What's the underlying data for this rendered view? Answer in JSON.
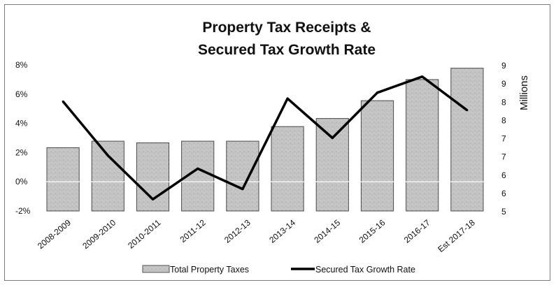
{
  "chart_data": {
    "type": "bar",
    "title_line1": "Property Tax Receipts &",
    "title_line2": "Secured Tax Growth Rate",
    "categories": [
      "2008-2009",
      "2009-2010",
      "2010-2011",
      "2011-12",
      "2012-13",
      "2013-14",
      "2014-15",
      "2015-16",
      "2016-17",
      "Est 2017-18"
    ],
    "series": [
      {
        "name": "Total Property Taxes",
        "kind": "bar",
        "axis": "right",
        "color": "#bdbdbd",
        "values": [
          6.95,
          7.15,
          7.1,
          7.15,
          7.15,
          7.6,
          7.85,
          8.4,
          9.05,
          9.4
        ]
      },
      {
        "name": "Secured Tax Growth Rate",
        "kind": "line",
        "axis": "left",
        "color": "#000000",
        "values": [
          5.5,
          1.8,
          -1.2,
          0.9,
          -0.5,
          5.7,
          3.0,
          6.1,
          7.2,
          4.9
        ]
      }
    ],
    "left_axis": {
      "ticks": [
        "-2%",
        "0%",
        "2%",
        "4%",
        "6%",
        "8%"
      ],
      "ylim": [
        -2,
        8
      ]
    },
    "right_axis": {
      "label": "Millions",
      "ticks": [
        "5",
        "6",
        "6",
        "7",
        "7",
        "8",
        "8",
        "9",
        "9"
      ],
      "ylim": [
        5,
        9.5
      ]
    },
    "grid": false,
    "legend_position": "bottom"
  }
}
